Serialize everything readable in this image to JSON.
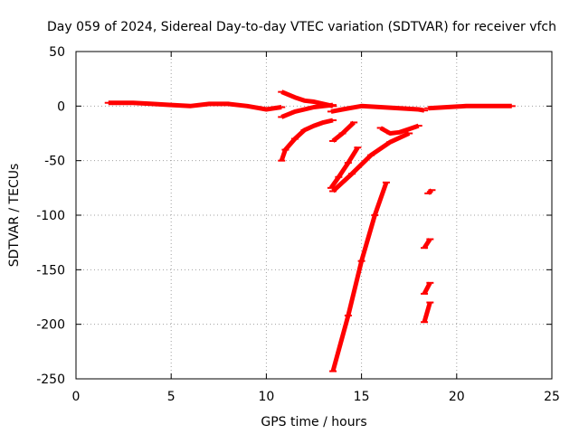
{
  "chart_data": {
    "type": "scatter",
    "title": "Day 059 of 2024, Sidereal Day-to-day VTEC variation (SDTVAR) for receiver vfch",
    "xlabel": "GPS time / hours",
    "ylabel": "SDTVAR / TECUs",
    "xlim": [
      0,
      25
    ],
    "ylim": [
      -250,
      50
    ],
    "x_ticks": [
      "0",
      "5",
      "10",
      "15",
      "20",
      "25"
    ],
    "y_ticks": [
      "50",
      "0",
      "-50",
      "-100",
      "-150",
      "-200",
      "-250"
    ],
    "grid": true,
    "color": "#ff0000",
    "series": [
      {
        "x": [
          1.7,
          2.5,
          3.0,
          4.0,
          5.0,
          6.0,
          7.0,
          8.0,
          9.0,
          10.0,
          10.8
        ],
        "y": [
          3,
          3,
          3,
          2,
          1,
          0,
          2,
          2,
          0,
          -3,
          -1
        ]
      },
      {
        "x": [
          10.8,
          11.5,
          12.0,
          12.5,
          13.0,
          13.5
        ],
        "y": [
          13,
          8,
          5,
          4,
          2,
          0
        ]
      },
      {
        "x": [
          10.8,
          11.5,
          12.0,
          12.5,
          13.0,
          13.5
        ],
        "y": [
          -10,
          -5,
          -3,
          -1,
          0,
          1
        ]
      },
      {
        "x": [
          10.8,
          11.0,
          11.5,
          12.0,
          12.5,
          13.0,
          13.5
        ],
        "y": [
          -50,
          -40,
          -30,
          -22,
          -18,
          -15,
          -13
        ]
      },
      {
        "x": [
          13.4,
          14.0,
          15.0,
          16.0,
          17.0,
          18.0,
          18.3
        ],
        "y": [
          -5,
          -3,
          0,
          -1,
          -2,
          -3,
          -4
        ]
      },
      {
        "x": [
          18.5,
          19.5,
          20.5,
          21.5,
          22.9
        ],
        "y": [
          -2,
          -1,
          0,
          0,
          0
        ]
      },
      {
        "x": [
          13.5,
          14.0,
          14.6
        ],
        "y": [
          -32,
          -25,
          -15
        ]
      },
      {
        "x": [
          13.4,
          13.8,
          14.3,
          14.8
        ],
        "y": [
          -75,
          -65,
          -52,
          -38
        ]
      },
      {
        "x": [
          13.5,
          14.5,
          15.5,
          16.5,
          17.5
        ],
        "y": [
          -78,
          -62,
          -45,
          -33,
          -25
        ]
      },
      {
        "x": [
          16.0,
          16.5,
          17.0,
          17.5,
          18.0
        ],
        "y": [
          -20,
          -25,
          -24,
          -21,
          -18
        ]
      },
      {
        "x": [
          13.5,
          14.3,
          15.0,
          15.7,
          16.3
        ],
        "y": [
          -243,
          -192,
          -142,
          -100,
          -70
        ]
      },
      {
        "x": [
          18.5,
          18.7
        ],
        "y": [
          -80,
          -77
        ]
      },
      {
        "x": [
          18.3,
          18.6
        ],
        "y": [
          -130,
          -122
        ]
      },
      {
        "x": [
          18.3,
          18.6
        ],
        "y": [
          -172,
          -162
        ]
      },
      {
        "x": [
          18.3,
          18.6
        ],
        "y": [
          -198,
          -180
        ]
      }
    ]
  }
}
